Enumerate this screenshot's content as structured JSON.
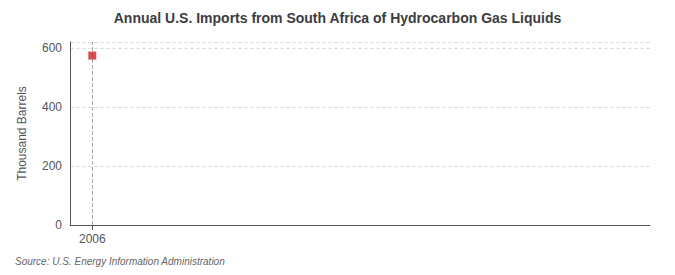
{
  "chart_data": {
    "type": "scatter",
    "title": "Annual U.S. Imports from South Africa of Hydrocarbon Gas Liquids",
    "ylabel": "Thousand Barrels",
    "source": "Source: U.S. Energy Information Administration",
    "x": [
      2006
    ],
    "values": [
      574
    ],
    "color": "#cc2222",
    "marker": "square",
    "vlines": [
      2006
    ],
    "xlim": [
      2005.4,
      2021
    ],
    "xticks": [
      2006
    ],
    "ylim": [
      0,
      620
    ],
    "yticks": [
      0,
      200,
      400,
      600
    ],
    "grid": true
  }
}
